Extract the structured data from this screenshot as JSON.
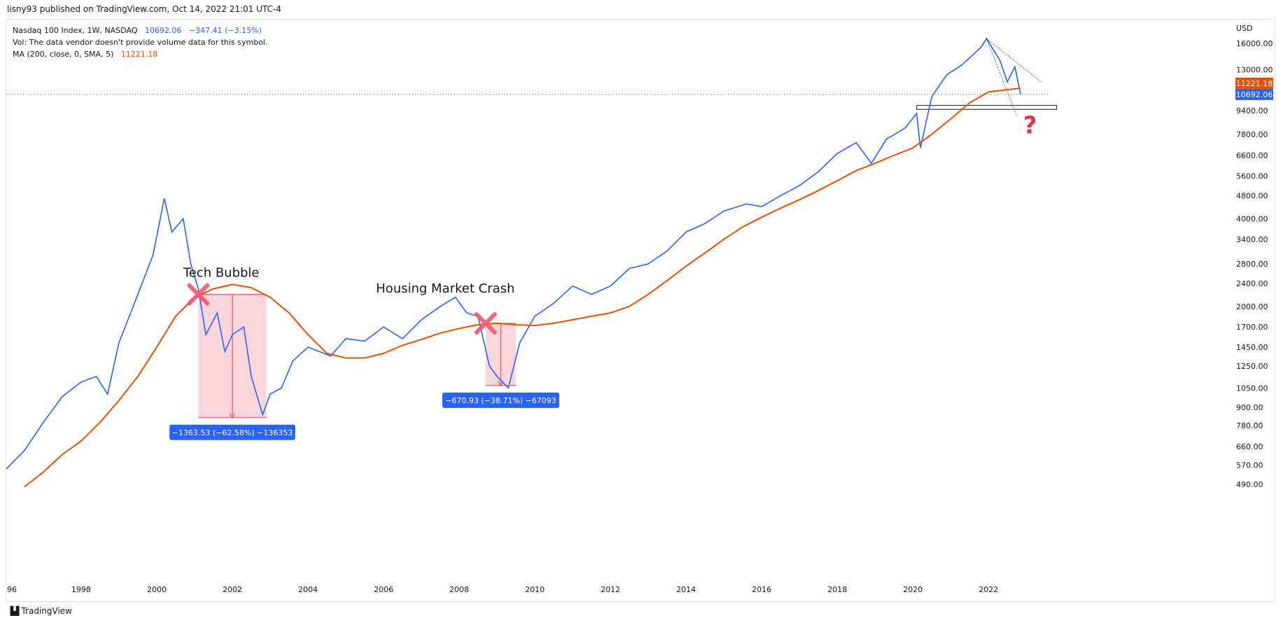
{
  "header": {
    "published": "lisny93 published on TradingView.com, Oct 14, 2022 21:01 UTC-4"
  },
  "legend": {
    "symbol": "Nasdaq 100 Index, 1W, NASDAQ",
    "price": "10692.06",
    "change": "−347.41 (−3.15%)",
    "vol": "Vol: The data vendor doesn't provide volume data for this symbol.",
    "ma_label": "MA (200, close, 0, SMA, 5)",
    "ma_value": "11221.18"
  },
  "footer": {
    "brand": "TradingView"
  },
  "colors": {
    "price": "#2962ff",
    "ma": "#e65100",
    "box": "#f8c8cf",
    "badge": "#2962ff",
    "cross": "#f0566f",
    "question": "#e8334f"
  },
  "chart_data": {
    "type": "line",
    "y_axis": {
      "currency": "USD",
      "scale": "log",
      "ticks": [
        "16000.00",
        "13000.00",
        "9400.00",
        "7800.00",
        "6600.00",
        "5600.00",
        "4800.00",
        "4000.00",
        "3400.00",
        "2800.00",
        "2400.00",
        "2000.00",
        "1700.00",
        "1450.00",
        "1250.00",
        "1050.00",
        "900.00",
        "780.00",
        "660.00",
        "570.00",
        "490.00"
      ],
      "tick_values": [
        16000,
        13000,
        9400,
        7800,
        6600,
        5600,
        4800,
        4000,
        3400,
        2800,
        2400,
        2000,
        1700,
        1450,
        1250,
        1050,
        900,
        780,
        660,
        570,
        490
      ],
      "price_tags": [
        {
          "label": "11221.18",
          "value": 11221.18,
          "color": "#e65100"
        },
        {
          "label": "10692.06",
          "value": 10692.06,
          "color": "#2962ff"
        }
      ]
    },
    "x_axis": {
      "ticks": [
        "96",
        "1998",
        "2000",
        "2002",
        "2004",
        "2006",
        "2008",
        "2010",
        "2012",
        "2014",
        "2016",
        "2018",
        "2020",
        "2022"
      ],
      "tick_years": [
        1996,
        1998,
        2000,
        2002,
        2004,
        2006,
        2008,
        2010,
        2012,
        2014,
        2016,
        2018,
        2020,
        2022
      ]
    },
    "series": [
      {
        "key": "price",
        "points": [
          [
            1996.0,
            550
          ],
          [
            1996.5,
            640
          ],
          [
            1997.0,
            800
          ],
          [
            1997.5,
            980
          ],
          [
            1998.0,
            1100
          ],
          [
            1998.4,
            1150
          ],
          [
            1998.7,
            1000
          ],
          [
            1999.0,
            1500
          ],
          [
            1999.5,
            2200
          ],
          [
            1999.9,
            3000
          ],
          [
            2000.2,
            4700
          ],
          [
            2000.4,
            3600
          ],
          [
            2000.7,
            4000
          ],
          [
            2000.9,
            2800
          ],
          [
            2001.1,
            2300
          ],
          [
            2001.3,
            1600
          ],
          [
            2001.6,
            1900
          ],
          [
            2001.8,
            1400
          ],
          [
            2002.0,
            1600
          ],
          [
            2002.3,
            1700
          ],
          [
            2002.5,
            1150
          ],
          [
            2002.8,
            850
          ],
          [
            2003.0,
            1000
          ],
          [
            2003.3,
            1050
          ],
          [
            2003.6,
            1300
          ],
          [
            2004.0,
            1450
          ],
          [
            2004.6,
            1350
          ],
          [
            2005.0,
            1550
          ],
          [
            2005.5,
            1520
          ],
          [
            2006.0,
            1700
          ],
          [
            2006.5,
            1550
          ],
          [
            2007.0,
            1800
          ],
          [
            2007.5,
            2000
          ],
          [
            2007.9,
            2150
          ],
          [
            2008.2,
            1900
          ],
          [
            2008.5,
            1850
          ],
          [
            2008.8,
            1250
          ],
          [
            2009.0,
            1150
          ],
          [
            2009.3,
            1050
          ],
          [
            2009.6,
            1500
          ],
          [
            2010.0,
            1850
          ],
          [
            2010.5,
            2050
          ],
          [
            2011.0,
            2350
          ],
          [
            2011.5,
            2200
          ],
          [
            2012.0,
            2350
          ],
          [
            2012.5,
            2700
          ],
          [
            2013.0,
            2800
          ],
          [
            2013.5,
            3100
          ],
          [
            2014.0,
            3600
          ],
          [
            2014.5,
            3850
          ],
          [
            2015.0,
            4250
          ],
          [
            2015.6,
            4500
          ],
          [
            2016.0,
            4400
          ],
          [
            2016.5,
            4800
          ],
          [
            2017.0,
            5200
          ],
          [
            2017.5,
            5800
          ],
          [
            2018.0,
            6700
          ],
          [
            2018.5,
            7300
          ],
          [
            2018.9,
            6200
          ],
          [
            2019.3,
            7500
          ],
          [
            2019.8,
            8200
          ],
          [
            2020.1,
            9200
          ],
          [
            2020.2,
            7000
          ],
          [
            2020.5,
            10500
          ],
          [
            2020.9,
            12500
          ],
          [
            2021.3,
            13500
          ],
          [
            2021.8,
            15500
          ],
          [
            2021.95,
            16600
          ],
          [
            2022.3,
            14000
          ],
          [
            2022.5,
            11800
          ],
          [
            2022.7,
            13300
          ],
          [
            2022.8,
            11500
          ],
          [
            2022.85,
            10692
          ]
        ]
      },
      {
        "key": "ma",
        "points": [
          [
            1996.5,
            480
          ],
          [
            1997.0,
            540
          ],
          [
            1997.5,
            620
          ],
          [
            1998.0,
            690
          ],
          [
            1998.5,
            800
          ],
          [
            1999.0,
            950
          ],
          [
            1999.5,
            1150
          ],
          [
            2000.0,
            1450
          ],
          [
            2000.5,
            1850
          ],
          [
            2001.0,
            2150
          ],
          [
            2001.5,
            2300
          ],
          [
            2002.0,
            2380
          ],
          [
            2002.5,
            2320
          ],
          [
            2003.0,
            2150
          ],
          [
            2003.5,
            1900
          ],
          [
            2004.0,
            1600
          ],
          [
            2004.5,
            1380
          ],
          [
            2005.0,
            1330
          ],
          [
            2005.5,
            1330
          ],
          [
            2006.0,
            1380
          ],
          [
            2006.5,
            1470
          ],
          [
            2007.0,
            1540
          ],
          [
            2007.5,
            1620
          ],
          [
            2008.0,
            1680
          ],
          [
            2008.5,
            1730
          ],
          [
            2009.0,
            1750
          ],
          [
            2009.5,
            1730
          ],
          [
            2010.0,
            1720
          ],
          [
            2010.5,
            1750
          ],
          [
            2011.0,
            1800
          ],
          [
            2011.5,
            1850
          ],
          [
            2012.0,
            1900
          ],
          [
            2012.5,
            2000
          ],
          [
            2013.0,
            2200
          ],
          [
            2013.5,
            2450
          ],
          [
            2014.0,
            2750
          ],
          [
            2014.5,
            3050
          ],
          [
            2015.0,
            3400
          ],
          [
            2015.5,
            3750
          ],
          [
            2016.0,
            4050
          ],
          [
            2016.5,
            4350
          ],
          [
            2017.0,
            4650
          ],
          [
            2017.5,
            5000
          ],
          [
            2018.0,
            5400
          ],
          [
            2018.5,
            5850
          ],
          [
            2019.0,
            6200
          ],
          [
            2019.5,
            6600
          ],
          [
            2020.0,
            7000
          ],
          [
            2020.5,
            7800
          ],
          [
            2021.0,
            8800
          ],
          [
            2021.5,
            10000
          ],
          [
            2022.0,
            10900
          ],
          [
            2022.5,
            11100
          ],
          [
            2022.85,
            11221
          ]
        ]
      }
    ],
    "annotations": [
      {
        "text": "Tech Bubble",
        "year": 2000.7,
        "value": 2530
      },
      {
        "text": "Housing Market Crash",
        "year": 2005.8,
        "value": 2230
      }
    ],
    "measures": [
      {
        "from_year": 2001.1,
        "to_year": 2002.9,
        "top": 2200,
        "bottom": 830,
        "label": "−1363.53 (−62.58%) −136353"
      },
      {
        "from_year": 2008.7,
        "to_year": 2009.5,
        "top": 1750,
        "bottom": 1070,
        "label": "−670.93 (−38.71%) −67093"
      }
    ],
    "markers": [
      {
        "type": "cross",
        "year": 2001.1,
        "value": 2200
      },
      {
        "type": "cross",
        "year": 2008.7,
        "value": 1750
      },
      {
        "type": "question",
        "year": 2023.1,
        "value": 8400
      }
    ],
    "support_box": {
      "from_year": 2020.1,
      "to_year": 2023.8,
      "top": 9800,
      "bottom": 9500
    },
    "trendlines": [
      {
        "from": [
          2021.95,
          16600
        ],
        "to": [
          2023.4,
          11800
        ]
      },
      {
        "from": [
          2021.95,
          16600
        ],
        "to": [
          2022.75,
          9000
        ]
      }
    ]
  }
}
